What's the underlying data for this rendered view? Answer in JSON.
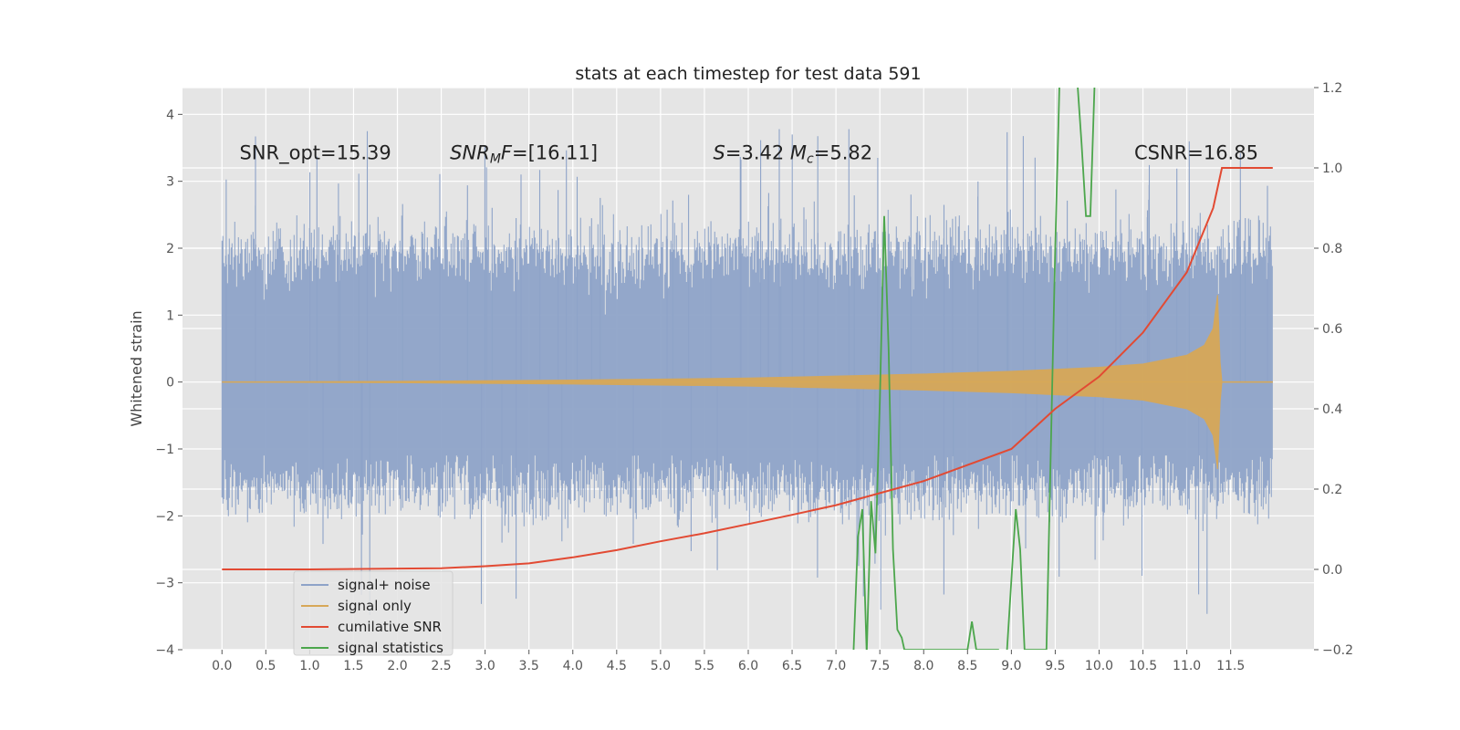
{
  "chart_data": {
    "type": "line",
    "title": "stats at each timestep for test data 591",
    "xlabel": "",
    "ylabel": "Whitened strain",
    "y2label": "",
    "xlim": [
      -0.45,
      12.45
    ],
    "ylim": [
      -4,
      4.4
    ],
    "y2lim": [
      -0.2,
      1.2
    ],
    "grid": true,
    "x_ticks": [
      "0.0",
      "0.5",
      "1.0",
      "1.5",
      "2.0",
      "2.5",
      "3.0",
      "3.5",
      "4.0",
      "4.5",
      "5.0",
      "5.5",
      "6.0",
      "6.5",
      "7.0",
      "7.5",
      "8.0",
      "8.5",
      "9.0",
      "9.5",
      "10.0",
      "10.5",
      "11.0",
      "11.5"
    ],
    "y_ticks": [
      "−4",
      "−3",
      "−2",
      "−1",
      "0",
      "1",
      "2",
      "3",
      "4"
    ],
    "y2_ticks": [
      "−0.2",
      "0.0",
      "0.2",
      "0.4",
      "0.6",
      "0.8",
      "1.0",
      "1.2"
    ],
    "legend_position": "lower-left",
    "annotations": [
      {
        "id": "snr_opt",
        "text": "SNR_opt=15.39",
        "x": 0.2,
        "y": 3.3
      },
      {
        "id": "snr_mf",
        "text": "SNR_MF=[16.11]",
        "x": 2.6,
        "y": 3.3
      },
      {
        "id": "s_mc",
        "text": "S=3.42   M_c=5.82",
        "x": 5.6,
        "y": 3.3
      },
      {
        "id": "csnr",
        "text": "CSNR=16.85",
        "x": 10.4,
        "y": 3.3
      }
    ],
    "series": [
      {
        "name": "signal+ noise",
        "axis": "left",
        "color": "#8EA3C8",
        "description": "noise-like band",
        "envelope_lower": -2.0,
        "envelope_upper": 2.4,
        "x_start": 0.0,
        "x_end": 11.98
      },
      {
        "name": "signal only",
        "axis": "left",
        "color": "#D7A858",
        "x": [
          0.0,
          2.0,
          4.0,
          6.0,
          7.0,
          8.0,
          9.0,
          10.0,
          10.5,
          11.0,
          11.2,
          11.3,
          11.35,
          11.38,
          11.4,
          11.98
        ],
        "amplitude": [
          0.0,
          0.01,
          0.03,
          0.06,
          0.09,
          0.12,
          0.16,
          0.22,
          0.27,
          0.4,
          0.55,
          0.8,
          1.3,
          0.3,
          0.0,
          0.0
        ]
      },
      {
        "name": "cumilative SNR",
        "axis": "right",
        "color": "#E24A33",
        "x": [
          0.0,
          1.0,
          2.0,
          2.5,
          3.0,
          3.5,
          4.0,
          4.5,
          5.0,
          5.5,
          6.0,
          6.5,
          7.0,
          7.5,
          8.0,
          8.5,
          9.0,
          9.5,
          10.0,
          10.5,
          11.0,
          11.3,
          11.4,
          11.98
        ],
        "values": [
          0.0,
          0.0,
          0.002,
          0.003,
          0.008,
          0.015,
          0.03,
          0.048,
          0.07,
          0.09,
          0.113,
          0.136,
          0.16,
          0.19,
          0.22,
          0.26,
          0.3,
          0.4,
          0.48,
          0.59,
          0.74,
          0.9,
          1.0,
          1.0
        ]
      },
      {
        "name": "signal statistics",
        "axis": "right",
        "color": "#348ABD",
        "display_color": "#4CA64C",
        "x": [
          7.2,
          7.25,
          7.3,
          7.35,
          7.4,
          7.45,
          7.5,
          7.55,
          7.6,
          7.65,
          7.7,
          7.75,
          7.78,
          8.5,
          8.55,
          8.6,
          8.85,
          8.9,
          8.95,
          9.05,
          9.1,
          9.15,
          9.4,
          9.45,
          9.5,
          9.55,
          9.6,
          9.65,
          9.7,
          9.75,
          9.8,
          9.85,
          9.9,
          9.95,
          10.0
        ],
        "values": [
          -0.21,
          0.08,
          0.15,
          -0.21,
          0.17,
          0.04,
          0.42,
          0.88,
          0.55,
          0.05,
          -0.15,
          -0.17,
          -0.2,
          -0.2,
          -0.13,
          -0.2,
          -0.2,
          -0.24,
          -0.2,
          0.15,
          0.05,
          -0.2,
          -0.2,
          0.3,
          0.8,
          1.22,
          1.25,
          1.3,
          1.25,
          1.22,
          1.06,
          0.88,
          0.88,
          1.22,
          1.25
        ]
      }
    ]
  }
}
